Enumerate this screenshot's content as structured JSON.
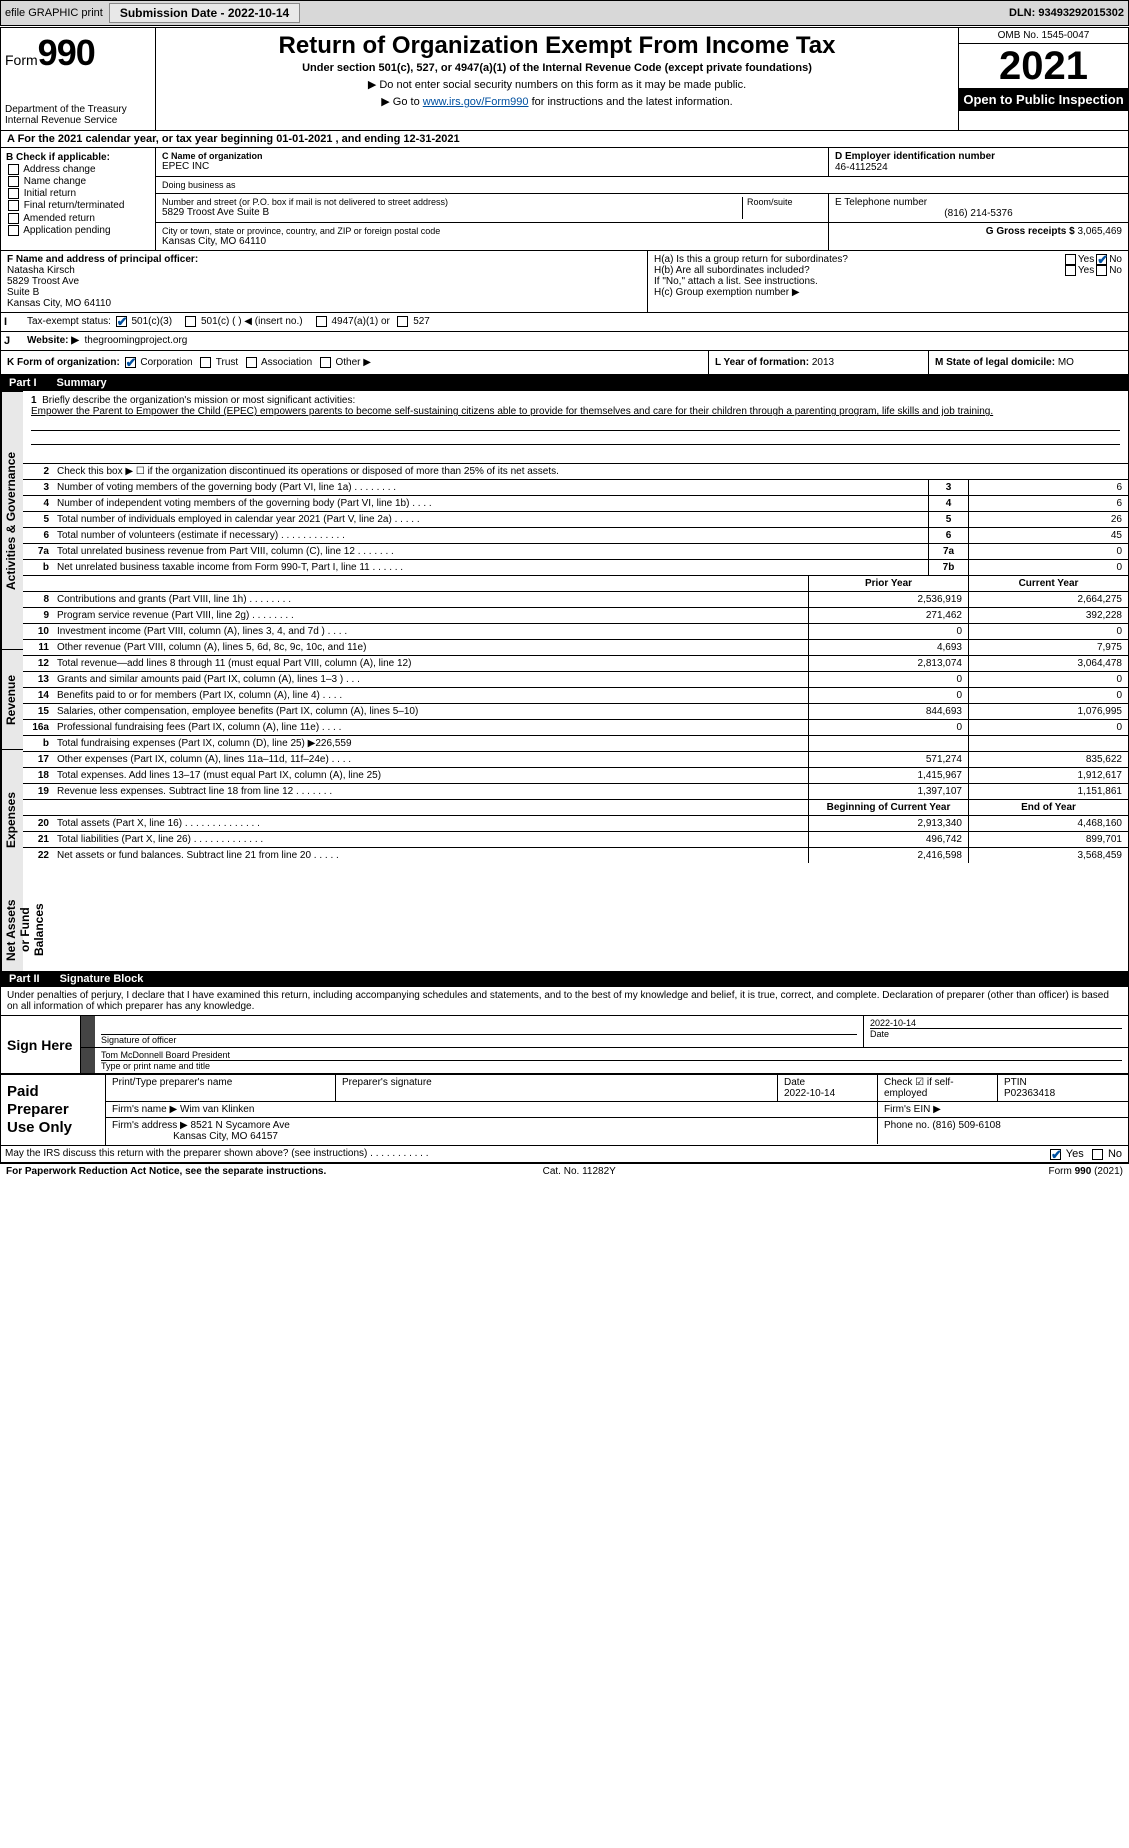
{
  "header_bar": {
    "efile": "efile GRAPHIC print",
    "submission": "Submission Date - 2022-10-14",
    "dln": "DLN: 93493292015302"
  },
  "form_header": {
    "form_label": "Form",
    "form_number": "990",
    "dept": "Department of the Treasury",
    "irs": "Internal Revenue Service",
    "title": "Return of Organization Exempt From Income Tax",
    "subtitle": "Under section 501(c), 527, or 4947(a)(1) of the Internal Revenue Code (except private foundations)",
    "note1": "▶ Do not enter social security numbers on this form as it may be made public.",
    "note2_pre": "▶ Go to ",
    "note2_link": "www.irs.gov/Form990",
    "note2_post": " for instructions and the latest information.",
    "omb": "OMB No. 1545-0047",
    "year": "2021",
    "inspect": "Open to Public Inspection"
  },
  "row_a": "A For the 2021 calendar year, or tax year beginning 01-01-2021  , and ending 12-31-2021",
  "col_b": {
    "hdr": "B Check if applicable:",
    "items": [
      "Address change",
      "Name change",
      "Initial return",
      "Final return/terminated",
      "Amended return",
      "Application pending"
    ]
  },
  "col_c": {
    "name_lbl": "C Name of organization",
    "name": "EPEC INC",
    "dba_lbl": "Doing business as",
    "addr_lbl": "Number and street (or P.O. box if mail is not delivered to street address)",
    "room_lbl": "Room/suite",
    "addr": "5829 Troost Ave Suite B",
    "city_lbl": "City or town, state or province, country, and ZIP or foreign postal code",
    "city": "Kansas City, MO  64110"
  },
  "col_d": {
    "ein_lbl": "D Employer identification number",
    "ein": "46-4112524",
    "phone_lbl": "E Telephone number",
    "phone": "(816) 214-5376",
    "gross_lbl": "G Gross receipts $",
    "gross": "3,065,469"
  },
  "col_f": {
    "lbl": "F Name and address of principal officer:",
    "name": "Natasha Kirsch",
    "l1": "5829 Troost Ave",
    "l2": "Suite B",
    "l3": "Kansas City, MO  64110"
  },
  "col_h": {
    "ha": "H(a)  Is this a group return for subordinates?",
    "hb": "H(b)  Are all subordinates included?",
    "hb2": "If \"No,\" attach a list. See instructions.",
    "hc": "H(c)  Group exemption number ▶",
    "yes": "Yes",
    "no": "No"
  },
  "row_i": {
    "lbl": "Tax-exempt status:",
    "o1": "501(c)(3)",
    "o2": "501(c) (  ) ◀ (insert no.)",
    "o3": "4947(a)(1) or",
    "o4": "527"
  },
  "row_j": {
    "lbl": "Website: ▶",
    "val": "thegroomingproject.org"
  },
  "row_k": {
    "lbl": "K Form of organization:",
    "o1": "Corporation",
    "o2": "Trust",
    "o3": "Association",
    "o4": "Other ▶"
  },
  "row_l": {
    "lbl": "L Year of formation:",
    "val": "2013"
  },
  "row_m": {
    "lbl": "M State of legal domicile:",
    "val": "MO"
  },
  "part1": {
    "pt": "Part I",
    "title": "Summary"
  },
  "mission": {
    "n": "1",
    "lbl": "Briefly describe the organization's mission or most significant activities:",
    "text": "Empower the Parent to Empower the Child (EPEC) empowers parents to become self-sustaining citizens able to provide for themselves and care for their children through a parenting program, life skills and job training."
  },
  "line2": "Check this box ▶ ☐ if the organization discontinued its operations or disposed of more than 25% of its net assets.",
  "lines_ag": [
    {
      "n": "3",
      "d": "Number of voting members of the governing body (Part VI, line 1a)  .  .  .  .  .  .  .  .",
      "box": "3",
      "v": "6"
    },
    {
      "n": "4",
      "d": "Number of independent voting members of the governing body (Part VI, line 1b)  .  .  .  .",
      "box": "4",
      "v": "6"
    },
    {
      "n": "5",
      "d": "Total number of individuals employed in calendar year 2021 (Part V, line 2a)  .  .  .  .  .",
      "box": "5",
      "v": "26"
    },
    {
      "n": "6",
      "d": "Total number of volunteers (estimate if necessary)  .  .  .  .  .  .  .  .  .  .  .  .",
      "box": "6",
      "v": "45"
    },
    {
      "n": "7a",
      "d": "Total unrelated business revenue from Part VIII, column (C), line 12  .  .  .  .  .  .  .",
      "box": "7a",
      "v": "0"
    },
    {
      "n": "b",
      "d": "Net unrelated business taxable income from Form 990-T, Part I, line 11  .  .  .  .  .  .",
      "box": "7b",
      "v": "0"
    }
  ],
  "col_hdrs": {
    "prior": "Prior Year",
    "current": "Current Year"
  },
  "rev": [
    {
      "n": "8",
      "d": "Contributions and grants (Part VIII, line 1h)  .  .  .  .  .  .  .  .",
      "p": "2,536,919",
      "c": "2,664,275"
    },
    {
      "n": "9",
      "d": "Program service revenue (Part VIII, line 2g)  .  .  .  .  .  .  .  .",
      "p": "271,462",
      "c": "392,228"
    },
    {
      "n": "10",
      "d": "Investment income (Part VIII, column (A), lines 3, 4, and 7d )  .  .  .  .",
      "p": "0",
      "c": "0"
    },
    {
      "n": "11",
      "d": "Other revenue (Part VIII, column (A), lines 5, 6d, 8c, 9c, 10c, and 11e)",
      "p": "4,693",
      "c": "7,975"
    },
    {
      "n": "12",
      "d": "Total revenue—add lines 8 through 11 (must equal Part VIII, column (A), line 12)",
      "p": "2,813,074",
      "c": "3,064,478"
    }
  ],
  "exp": [
    {
      "n": "13",
      "d": "Grants and similar amounts paid (Part IX, column (A), lines 1–3 )  .  .  .",
      "p": "0",
      "c": "0"
    },
    {
      "n": "14",
      "d": "Benefits paid to or for members (Part IX, column (A), line 4)  .  .  .  .",
      "p": "0",
      "c": "0"
    },
    {
      "n": "15",
      "d": "Salaries, other compensation, employee benefits (Part IX, column (A), lines 5–10)",
      "p": "844,693",
      "c": "1,076,995"
    },
    {
      "n": "16a",
      "d": "Professional fundraising fees (Part IX, column (A), line 11e)  .  .  .  .",
      "p": "0",
      "c": "0"
    },
    {
      "n": "b",
      "d": "Total fundraising expenses (Part IX, column (D), line 25) ▶226,559",
      "p": "",
      "c": ""
    },
    {
      "n": "17",
      "d": "Other expenses (Part IX, column (A), lines 11a–11d, 11f–24e)  .  .  .  .",
      "p": "571,274",
      "c": "835,622"
    },
    {
      "n": "18",
      "d": "Total expenses. Add lines 13–17 (must equal Part IX, column (A), line 25)",
      "p": "1,415,967",
      "c": "1,912,617"
    },
    {
      "n": "19",
      "d": "Revenue less expenses. Subtract line 18 from line 12  .  .  .  .  .  .  .",
      "p": "1,397,107",
      "c": "1,151,861"
    }
  ],
  "na_hdrs": {
    "b": "Beginning of Current Year",
    "e": "End of Year"
  },
  "na": [
    {
      "n": "20",
      "d": "Total assets (Part X, line 16)  .  .  .  .  .  .  .  .  .  .  .  .  .  .",
      "p": "2,913,340",
      "c": "4,468,160"
    },
    {
      "n": "21",
      "d": "Total liabilities (Part X, line 26)  .  .  .  .  .  .  .  .  .  .  .  .  .",
      "p": "496,742",
      "c": "899,701"
    },
    {
      "n": "22",
      "d": "Net assets or fund balances. Subtract line 21 from line 20  .  .  .  .  .",
      "p": "2,416,598",
      "c": "3,568,459"
    }
  ],
  "part2": {
    "pt": "Part II",
    "title": "Signature Block"
  },
  "sig": {
    "decl": "Under penalties of perjury, I declare that I have examined this return, including accompanying schedules and statements, and to the best of my knowledge and belief, it is true, correct, and complete. Declaration of preparer (other than officer) is based on all information of which preparer has any knowledge.",
    "sign_here": "Sign Here",
    "sig_off": "Signature of officer",
    "date": "Date",
    "date_val": "2022-10-14",
    "name_title": "Tom McDonnell  Board President",
    "type_lbl": "Type or print name and title"
  },
  "paid": {
    "lbl": "Paid Preparer Use Only",
    "h1": "Print/Type preparer's name",
    "h2": "Preparer's signature",
    "h3": "Date",
    "h3v": "2022-10-14",
    "h4": "Check ☑ if self-employed",
    "h5_lbl": "PTIN",
    "h5": "P02363418",
    "firm_name_lbl": "Firm's name    ▶",
    "firm_name": "Wim van Klinken",
    "firm_ein_lbl": "Firm's EIN ▶",
    "firm_addr_lbl": "Firm's address ▶",
    "firm_addr": "8521 N Sycamore Ave",
    "firm_city": "Kansas City, MO  64157",
    "phone_lbl": "Phone no.",
    "phone": "(816) 509-6108"
  },
  "may_irs": "May the IRS discuss this return with the preparer shown above? (see instructions)  .  .  .  .  .  .  .  .  .  .  .",
  "footer": {
    "l": "For Paperwork Reduction Act Notice, see the separate instructions.",
    "c": "Cat. No. 11282Y",
    "r": "Form 990 (2021)"
  },
  "vtabs": {
    "ag": "Activities & Governance",
    "rev": "Revenue",
    "exp": "Expenses",
    "na": "Net Assets or Fund Balances"
  }
}
